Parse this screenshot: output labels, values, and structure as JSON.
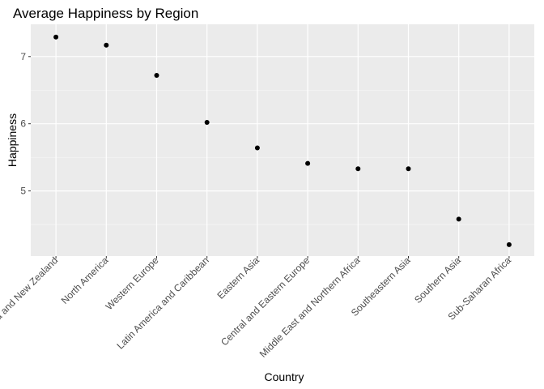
{
  "chart_data": {
    "type": "scatter",
    "title": "Average Happiness by Region",
    "xlabel": "Country",
    "ylabel": "Happiness",
    "categories": [
      "Australia and New Zealand",
      "North America",
      "Western Europe",
      "Latin America and Caribbean",
      "Eastern Asia",
      "Central and Eastern Europe",
      "Middle East and Northern Africa",
      "Southeastern Asia",
      "Southern Asia",
      "Sub-Saharan Africa"
    ],
    "values": [
      7.29,
      7.17,
      6.72,
      6.02,
      5.64,
      5.41,
      5.33,
      5.33,
      4.58,
      4.2
    ],
    "yticks": [
      5,
      6,
      7
    ],
    "ytick_labels": [
      "5",
      "6",
      "7"
    ],
    "ylim": [
      4.03,
      7.48
    ],
    "grid": true,
    "colors": {
      "panel_background": "#ebebeb",
      "grid_major": "#ffffff",
      "grid_minor": "#f7f7f7",
      "point": "#000000",
      "tick_text": "#4d4d4d"
    }
  }
}
